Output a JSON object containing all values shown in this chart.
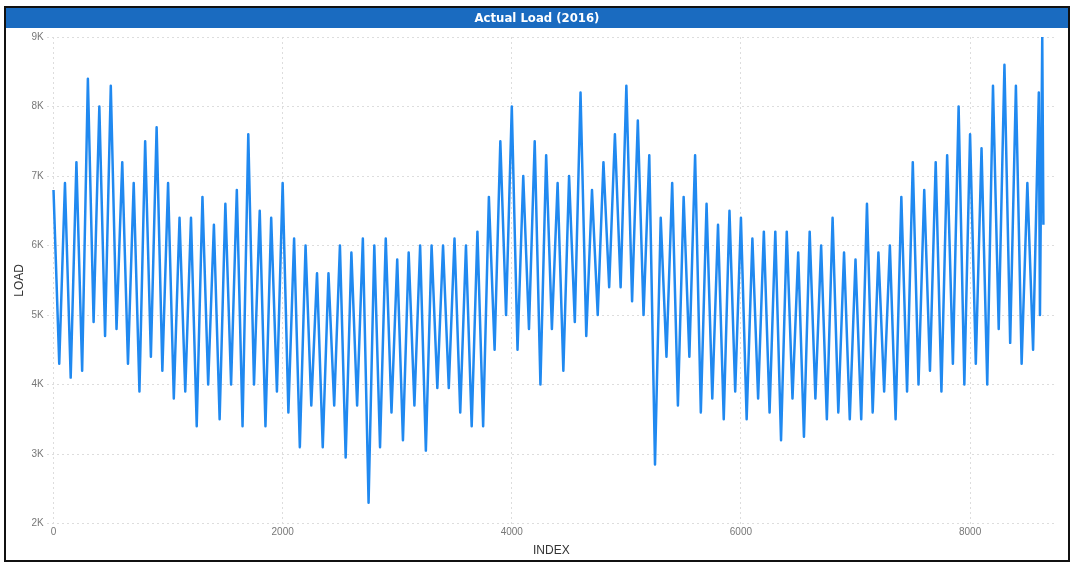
{
  "chart_data": {
    "type": "line",
    "title": "Actual Load (2016)",
    "xlabel": "INDEX",
    "ylabel": "LOAD",
    "x": [
      0,
      50,
      100,
      150,
      200,
      250,
      300,
      350,
      400,
      450,
      500,
      550,
      600,
      650,
      700,
      750,
      800,
      850,
      900,
      950,
      1000,
      1050,
      1100,
      1150,
      1200,
      1250,
      1300,
      1350,
      1400,
      1450,
      1500,
      1550,
      1600,
      1650,
      1700,
      1750,
      1800,
      1850,
      1900,
      1950,
      2000,
      2050,
      2100,
      2150,
      2200,
      2250,
      2300,
      2350,
      2400,
      2450,
      2500,
      2550,
      2600,
      2650,
      2700,
      2750,
      2800,
      2850,
      2900,
      2950,
      3000,
      3050,
      3100,
      3150,
      3200,
      3250,
      3300,
      3350,
      3400,
      3450,
      3500,
      3550,
      3600,
      3650,
      3700,
      3750,
      3800,
      3850,
      3900,
      3950,
      4000,
      4050,
      4100,
      4150,
      4200,
      4250,
      4300,
      4350,
      4400,
      4450,
      4500,
      4550,
      4600,
      4650,
      4700,
      4750,
      4800,
      4850,
      4900,
      4950,
      5000,
      5050,
      5100,
      5150,
      5200,
      5250,
      5300,
      5350,
      5400,
      5450,
      5500,
      5550,
      5600,
      5650,
      5700,
      5750,
      5800,
      5850,
      5900,
      5950,
      6000,
      6050,
      6100,
      6150,
      6200,
      6250,
      6300,
      6350,
      6400,
      6450,
      6500,
      6550,
      6600,
      6650,
      6700,
      6750,
      6800,
      6850,
      6900,
      6950,
      7000,
      7050,
      7100,
      7150,
      7200,
      7250,
      7300,
      7350,
      7400,
      7450,
      7500,
      7550,
      7600,
      7650,
      7700,
      7750,
      7800,
      7850,
      7900,
      7950,
      8000,
      8050,
      8100,
      8150,
      8200,
      8250,
      8300,
      8350,
      8400,
      8450,
      8500,
      8550,
      8600,
      8610,
      8630,
      8640
    ],
    "series": [
      {
        "color": "#2089f0",
        "values": [
          6800,
          4300,
          6900,
          4100,
          7200,
          4200,
          8400,
          4900,
          8000,
          4700,
          8300,
          4800,
          7200,
          4300,
          6900,
          3900,
          7500,
          4400,
          7700,
          4200,
          6900,
          3800,
          6400,
          3900,
          6400,
          3400,
          6700,
          4000,
          6300,
          3500,
          6600,
          4000,
          6800,
          3400,
          7600,
          4000,
          6500,
          3400,
          6400,
          3900,
          6900,
          3600,
          6100,
          3100,
          6000,
          3700,
          5600,
          3100,
          5600,
          3700,
          6000,
          2950,
          5900,
          3700,
          6100,
          2300,
          6000,
          3100,
          6100,
          3600,
          5800,
          3200,
          5900,
          3700,
          6000,
          3050,
          6000,
          3950,
          6000,
          3950,
          6100,
          3600,
          6000,
          3400,
          6200,
          3400,
          6700,
          4500,
          7500,
          5000,
          8000,
          4500,
          7000,
          4800,
          7500,
          4000,
          7300,
          4800,
          6900,
          4200,
          7000,
          4900,
          8200,
          4700,
          6800,
          5000,
          7200,
          5400,
          7600,
          5400,
          8300,
          5200,
          7800,
          5000,
          7300,
          2850,
          6400,
          4400,
          6900,
          3700,
          6700,
          4400,
          7300,
          3600,
          6600,
          3800,
          6300,
          3500,
          6500,
          3900,
          6400,
          3500,
          6100,
          3800,
          6200,
          3600,
          6200,
          3200,
          6200,
          3800,
          5900,
          3250,
          6200,
          3800,
          6000,
          3500,
          6400,
          3600,
          5900,
          3500,
          5800,
          3500,
          6600,
          3600,
          5900,
          3900,
          6000,
          3500,
          6700,
          3900,
          7200,
          4000,
          6800,
          4200,
          7200,
          3900,
          7300,
          4300,
          8000,
          4000,
          7600,
          4300,
          7400,
          4000,
          8300,
          4800,
          8600,
          4600,
          8300,
          4300,
          6900,
          4500,
          8200,
          5000,
          9000,
          6300
        ]
      }
    ],
    "xlim": [
      -60,
      8750
    ],
    "xticks": [
      0,
      2000,
      4000,
      6000,
      8000
    ],
    "ylim": [
      2000,
      9000
    ],
    "yticks": [
      {
        "value": 2000,
        "label": "2K"
      },
      {
        "value": 3000,
        "label": "3K"
      },
      {
        "value": 4000,
        "label": "4K"
      },
      {
        "value": 5000,
        "label": "5K"
      },
      {
        "value": 6000,
        "label": "6K"
      },
      {
        "value": 7000,
        "label": "7K"
      },
      {
        "value": 8000,
        "label": "8K"
      },
      {
        "value": 9000,
        "label": "9K"
      }
    ],
    "grid": true,
    "legend": false,
    "line_style": "solid",
    "marker": "none"
  }
}
